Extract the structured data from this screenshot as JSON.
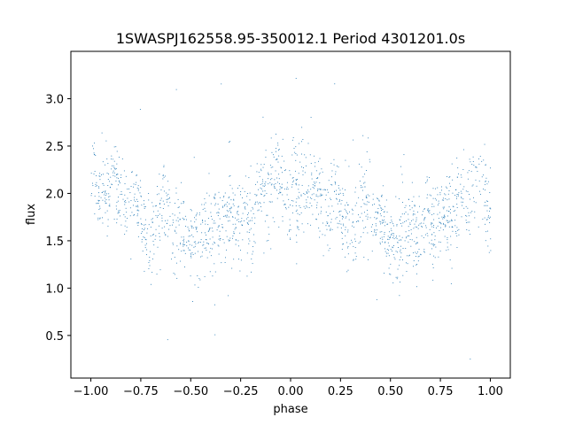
{
  "chart_data": {
    "type": "scatter",
    "title": "1SWASPJ162558.95-350012.1 Period 4301201.0s",
    "xlabel": "phase",
    "ylabel": "flux",
    "xlim": [
      -1.1,
      1.1
    ],
    "ylim": [
      0.05,
      3.5
    ],
    "xticks": [
      -1.0,
      -0.75,
      -0.5,
      -0.25,
      0.0,
      0.25,
      0.5,
      0.75,
      1.0
    ],
    "xtick_labels": [
      "−1.00",
      "−0.75",
      "−0.50",
      "−0.25",
      "0.00",
      "0.25",
      "0.50",
      "0.75",
      "1.00"
    ],
    "yticks": [
      0.5,
      1.0,
      1.5,
      2.0,
      2.5,
      3.0
    ],
    "ytick_labels": [
      "0.5",
      "1.0",
      "1.5",
      "2.0",
      "2.5",
      "3.0"
    ],
    "grid": false,
    "marker_color": "#1f77b4",
    "series": [
      {
        "phase_range": [
          -1.0,
          1.0
        ],
        "profile": {
          "phase": [
            0.0,
            0.05,
            0.1,
            0.15,
            0.2,
            0.25,
            0.3,
            0.35,
            0.4,
            0.45,
            0.5,
            0.55,
            0.6,
            0.65,
            0.7,
            0.75,
            0.8,
            0.85,
            0.9,
            0.95,
            1.0
          ],
          "flux": [
            1.85,
            2.1,
            2.15,
            2.0,
            1.85,
            1.75,
            1.7,
            1.8,
            1.75,
            1.6,
            1.55,
            1.55,
            1.6,
            1.7,
            1.75,
            1.6,
            1.75,
            1.9,
            2.15,
            2.1,
            1.85
          ]
        },
        "scatter_sd": 0.22,
        "outlier_range": [
          0.2,
          3.35
        ]
      }
    ]
  }
}
